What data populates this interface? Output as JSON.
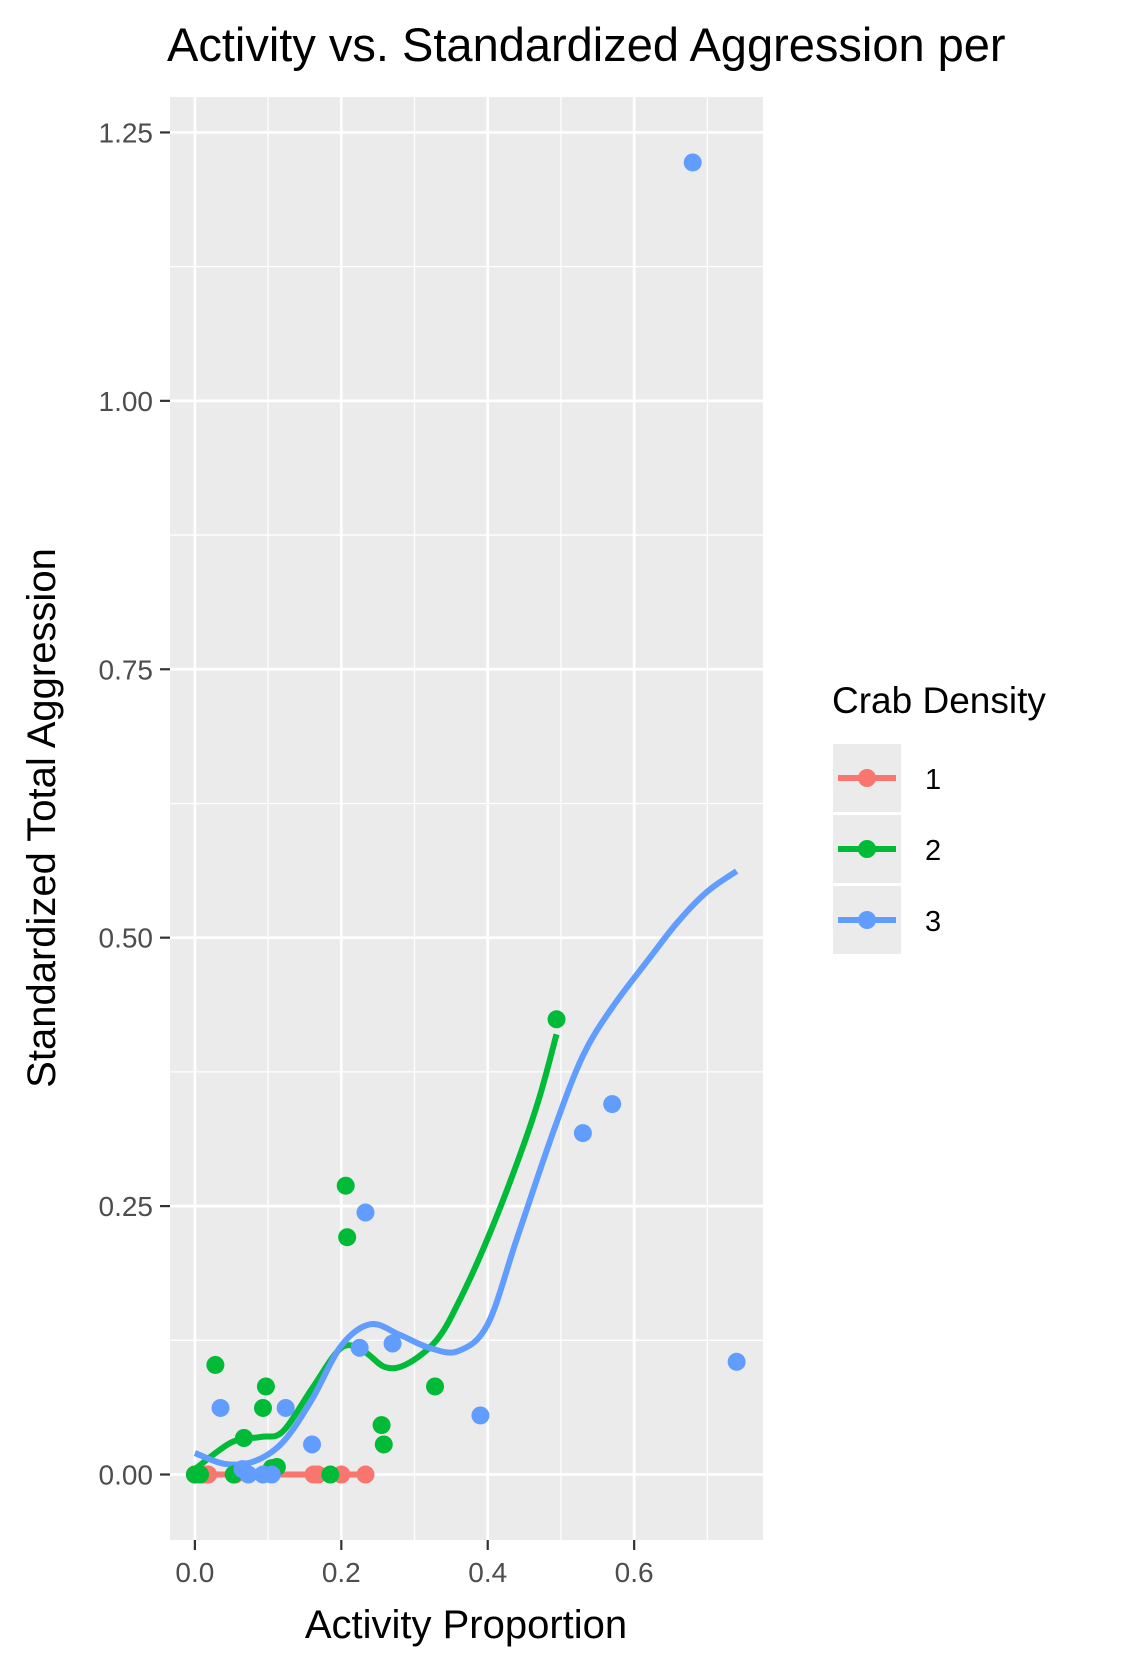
{
  "chart_data": {
    "type": "scatter",
    "title": "Activity vs. Standardized Aggression per",
    "xlabel": "Activity Proportion",
    "ylabel": "Standardized Total Aggression",
    "xlim": [
      -0.034,
      0.776
    ],
    "ylim": [
      -0.061,
      1.283
    ],
    "x_ticks": [
      {
        "value": 0.0,
        "label": "0.0"
      },
      {
        "value": 0.2,
        "label": "0.2"
      },
      {
        "value": 0.4,
        "label": "0.4"
      },
      {
        "value": 0.6,
        "label": "0.6"
      }
    ],
    "y_ticks": [
      {
        "value": 0.0,
        "label": "0.00"
      },
      {
        "value": 0.25,
        "label": "0.25"
      },
      {
        "value": 0.5,
        "label": "0.50"
      },
      {
        "value": 0.75,
        "label": "0.75"
      },
      {
        "value": 1.0,
        "label": "1.00"
      },
      {
        "value": 1.25,
        "label": "1.25"
      }
    ],
    "grid": true,
    "legend": {
      "title": "Crab Density",
      "position": "right"
    },
    "series": [
      {
        "name": "1",
        "color": "#F8766D",
        "points": [
          [
            0.0,
            0.0
          ],
          [
            0.012,
            0.0
          ],
          [
            0.018,
            0.0
          ],
          [
            0.055,
            0.0
          ],
          [
            0.162,
            0.0
          ],
          [
            0.168,
            0.0
          ],
          [
            0.2,
            0.0
          ],
          [
            0.233,
            0.0
          ]
        ],
        "smooth": [
          [
            0.0,
            0.0
          ],
          [
            0.233,
            0.0
          ]
        ]
      },
      {
        "name": "2",
        "color": "#00BA38",
        "points": [
          [
            0.0,
            0.0
          ],
          [
            0.007,
            0.0
          ],
          [
            0.028,
            0.102
          ],
          [
            0.053,
            0.0
          ],
          [
            0.067,
            0.034
          ],
          [
            0.093,
            0.062
          ],
          [
            0.097,
            0.082
          ],
          [
            0.105,
            0.006
          ],
          [
            0.112,
            0.007
          ],
          [
            0.185,
            0.0
          ],
          [
            0.206,
            0.269
          ],
          [
            0.208,
            0.221
          ],
          [
            0.255,
            0.046
          ],
          [
            0.258,
            0.028
          ],
          [
            0.328,
            0.082
          ],
          [
            0.494,
            0.424
          ]
        ],
        "smooth": [
          [
            0.0,
            0.005
          ],
          [
            0.05,
            0.03
          ],
          [
            0.09,
            0.035
          ],
          [
            0.12,
            0.04
          ],
          [
            0.16,
            0.08
          ],
          [
            0.2,
            0.118
          ],
          [
            0.23,
            0.115
          ],
          [
            0.26,
            0.1
          ],
          [
            0.29,
            0.103
          ],
          [
            0.33,
            0.125
          ],
          [
            0.36,
            0.16
          ],
          [
            0.4,
            0.22
          ],
          [
            0.44,
            0.29
          ],
          [
            0.47,
            0.35
          ],
          [
            0.494,
            0.41
          ]
        ]
      },
      {
        "name": "3",
        "color": "#619CFF",
        "points": [
          [
            0.035,
            0.062
          ],
          [
            0.065,
            0.005
          ],
          [
            0.073,
            0.0
          ],
          [
            0.093,
            0.0
          ],
          [
            0.105,
            0.0
          ],
          [
            0.124,
            0.062
          ],
          [
            0.16,
            0.028
          ],
          [
            0.225,
            0.118
          ],
          [
            0.233,
            0.244
          ],
          [
            0.27,
            0.122
          ],
          [
            0.39,
            0.055
          ],
          [
            0.53,
            0.318
          ],
          [
            0.57,
            0.345
          ],
          [
            0.68,
            1.222
          ],
          [
            0.74,
            0.105
          ]
        ],
        "smooth": [
          [
            0.0,
            0.02
          ],
          [
            0.04,
            0.01
          ],
          [
            0.08,
            0.012
          ],
          [
            0.12,
            0.03
          ],
          [
            0.16,
            0.07
          ],
          [
            0.2,
            0.12
          ],
          [
            0.24,
            0.14
          ],
          [
            0.28,
            0.13
          ],
          [
            0.32,
            0.118
          ],
          [
            0.36,
            0.115
          ],
          [
            0.4,
            0.14
          ],
          [
            0.44,
            0.22
          ],
          [
            0.49,
            0.32
          ],
          [
            0.53,
            0.39
          ],
          [
            0.57,
            0.435
          ],
          [
            0.62,
            0.48
          ],
          [
            0.66,
            0.515
          ],
          [
            0.7,
            0.543
          ],
          [
            0.74,
            0.562
          ]
        ]
      }
    ]
  }
}
